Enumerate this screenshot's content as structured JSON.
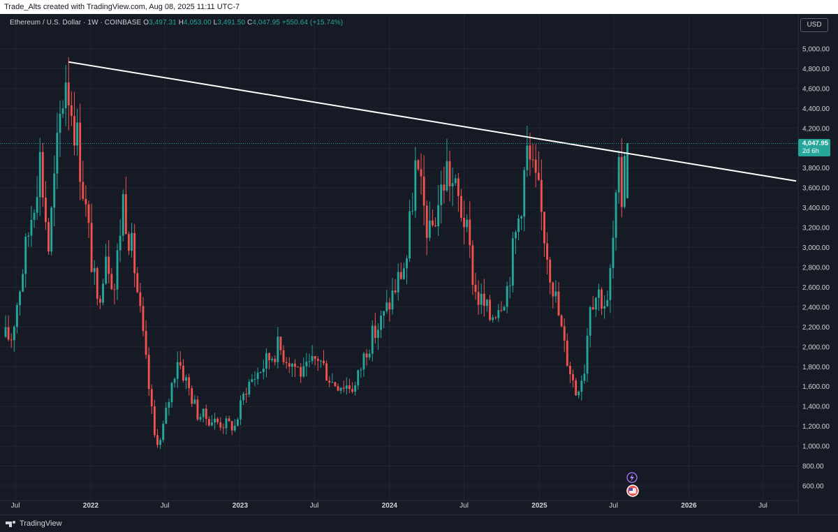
{
  "header": {
    "text": "Trade_Alts created with TradingView.com, Aug 08, 2025 11:11 UTC-7"
  },
  "legend": {
    "symbol": "Ethereum / U.S. Dollar · 1W · COINBASE",
    "o_label": "O",
    "open": "3,497.31",
    "h_label": "H",
    "high": "4,053.00",
    "l_label": "L",
    "low": "3,491.50",
    "c_label": "C",
    "close": "4,047.95",
    "change": "+550.64 (+15.74%)"
  },
  "currency_button": "USD",
  "last_price": {
    "value": "4,047.95",
    "countdown": "2d 6h"
  },
  "footer": {
    "brand": "TradingView"
  },
  "colors": {
    "up": "#26a69a",
    "down": "#ef5350",
    "background": "#161a25",
    "grid": "#232733",
    "trendline": "#ffffff",
    "axis_text": "#d1d4dc"
  },
  "chart_data": {
    "type": "candlestick",
    "title": "",
    "xlabel": "",
    "ylabel": "",
    "interval": "1W",
    "x_tick_labels": [
      "Jul",
      "2022",
      "Jul",
      "2023",
      "Jul",
      "2024",
      "Jul",
      "2025",
      "Jul",
      "2026",
      "Jul"
    ],
    "y_tick_labels": [
      "600.00",
      "800.00",
      "1,000.00",
      "1,200.00",
      "1,400.00",
      "1,600.00",
      "1,800.00",
      "2,000.00",
      "2,200.00",
      "2,400.00",
      "2,600.00",
      "2,800.00",
      "3,000.00",
      "3,200.00",
      "3,400.00",
      "3,600.00",
      "3,800.00",
      "4,000.00",
      "4,200.00",
      "4,400.00",
      "4,600.00",
      "4,800.00",
      "5,000.00"
    ],
    "ylim": [
      500,
      5150
    ],
    "grid": true,
    "last_close": 4047.95,
    "trendline": {
      "points": [
        [
          "2021-11-08",
          4868
        ],
        [
          "2026-09-20",
          3670
        ]
      ],
      "color": "#ffffff"
    },
    "price_anchors": [
      [
        "2021-06-28",
        2100
      ],
      [
        "2021-08-09",
        3150
      ],
      [
        "2021-09-06",
        3900
      ],
      [
        "2021-09-27",
        3000
      ],
      [
        "2021-10-25",
        4300
      ],
      [
        "2021-11-08",
        4750
      ],
      [
        "2021-12-06",
        4100
      ],
      [
        "2022-01-24",
        2400
      ],
      [
        "2022-02-14",
        3000
      ],
      [
        "2022-03-07",
        2600
      ],
      [
        "2022-03-28",
        3500
      ],
      [
        "2022-04-25",
        2800
      ],
      [
        "2022-06-13",
        1100
      ],
      [
        "2022-06-27",
        1050
      ],
      [
        "2022-08-08",
        1900
      ],
      [
        "2022-09-26",
        1330
      ],
      [
        "2022-11-07",
        1250
      ],
      [
        "2022-12-26",
        1200
      ],
      [
        "2023-01-23",
        1600
      ],
      [
        "2023-04-10",
        2000
      ],
      [
        "2023-06-12",
        1720
      ],
      [
        "2023-07-17",
        1900
      ],
      [
        "2023-08-21",
        1650
      ],
      [
        "2023-10-16",
        1600
      ],
      [
        "2023-11-13",
        2000
      ],
      [
        "2023-12-25",
        2300
      ],
      [
        "2024-02-19",
        2900
      ],
      [
        "2024-03-11",
        3800
      ],
      [
        "2024-04-15",
        3100
      ],
      [
        "2024-05-27",
        3800
      ],
      [
        "2024-07-08",
        3300
      ],
      [
        "2024-08-05",
        2550
      ],
      [
        "2024-09-09",
        2300
      ],
      [
        "2024-10-21",
        2600
      ],
      [
        "2024-11-18",
        3300
      ],
      [
        "2024-12-09",
        3950
      ],
      [
        "2025-01-06",
        3500
      ],
      [
        "2025-02-03",
        2800
      ],
      [
        "2025-03-10",
        2000
      ],
      [
        "2025-04-07",
        1550
      ],
      [
        "2025-04-28",
        1800
      ],
      [
        "2025-05-12",
        2500
      ],
      [
        "2025-06-02",
        2550
      ],
      [
        "2025-06-23",
        2400
      ],
      [
        "2025-07-14",
        3400
      ],
      [
        "2025-07-21",
        3700
      ],
      [
        "2025-07-28",
        3497.31
      ],
      [
        "2025-08-04",
        4047.95
      ]
    ],
    "date_range": [
      "2021-06-07",
      "2025-08-04"
    ],
    "x_range": [
      "2021-06-07",
      "2026-09-20"
    ]
  }
}
